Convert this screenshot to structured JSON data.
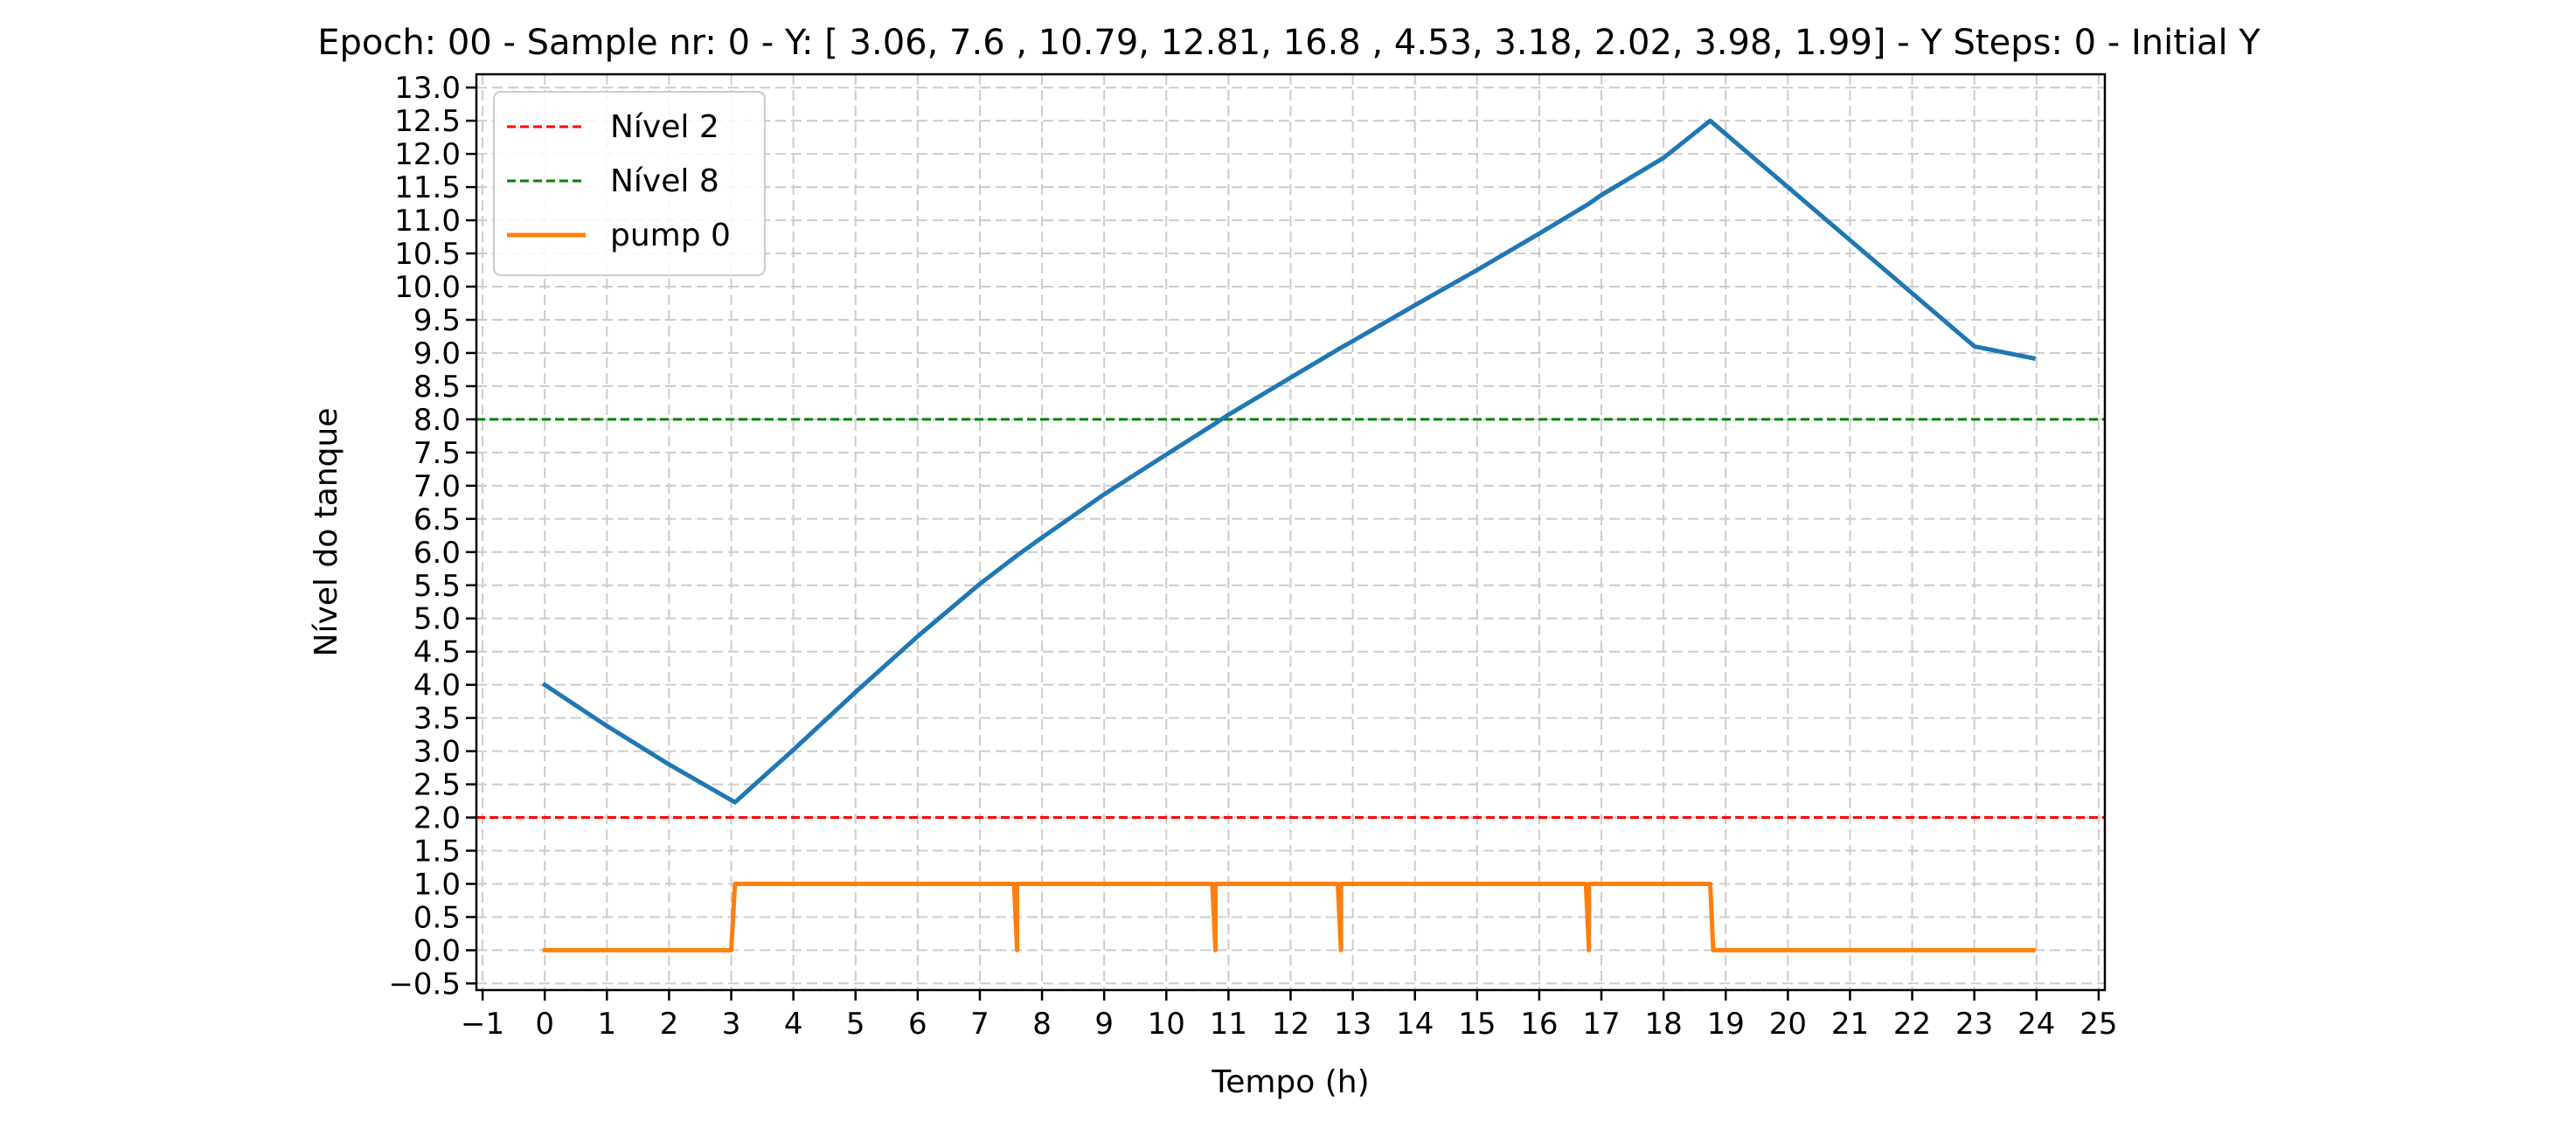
{
  "chart_data": {
    "type": "line",
    "title": "Epoch: 00 - Sample nr: 0 - Y: [ 3.06,  7.6 , 10.79, 12.81, 16.8 ,  4.53,  3.18,  2.02,  3.98,  1.99] - Y Steps: 0  - Initial Y",
    "xlabel": "Tempo (h)",
    "ylabel": "Nível do tanque",
    "xlim": [
      -1.1,
      25.1
    ],
    "ylim": [
      -0.6,
      13.2
    ],
    "xticks": [
      "−1",
      "0",
      "1",
      "2",
      "3",
      "4",
      "5",
      "6",
      "7",
      "8",
      "9",
      "10",
      "11",
      "12",
      "13",
      "14",
      "15",
      "16",
      "17",
      "18",
      "19",
      "20",
      "21",
      "22",
      "23",
      "24",
      "25"
    ],
    "yticks": [
      "−0.5",
      "0.0",
      "0.5",
      "1.0",
      "1.5",
      "2.0",
      "2.5",
      "3.0",
      "3.5",
      "4.0",
      "4.5",
      "5.0",
      "5.5",
      "6.0",
      "6.5",
      "7.0",
      "7.5",
      "8.0",
      "8.5",
      "9.0",
      "9.5",
      "10.0",
      "10.5",
      "11.0",
      "11.5",
      "12.0",
      "12.5",
      "13.0"
    ],
    "grid": true,
    "legend_position": "upper-left",
    "hlines": [
      {
        "name": "Nível 2",
        "y": 2,
        "color": "#ff0000",
        "style": "dashed"
      },
      {
        "name": "Nível 8",
        "y": 8,
        "color": "#008000",
        "style": "dashed"
      }
    ],
    "series": [
      {
        "color": "#1f77b4",
        "x": [
          0,
          1,
          2,
          3.06,
          4,
          5,
          6,
          7,
          7.6,
          8,
          9,
          10,
          10.79,
          11,
          12,
          12.81,
          13,
          14,
          15,
          16,
          16.8,
          17,
          18,
          18.75,
          19,
          20,
          21,
          22,
          23,
          23.95
        ],
        "y": [
          4.0,
          3.38,
          2.8,
          2.23,
          3.02,
          3.89,
          4.73,
          5.52,
          5.95,
          6.22,
          6.87,
          7.47,
          7.94,
          8.07,
          8.63,
          9.08,
          9.18,
          9.72,
          10.25,
          10.8,
          11.25,
          11.38,
          11.94,
          12.5,
          12.3,
          11.5,
          10.7,
          9.9,
          9.1,
          8.92
        ]
      },
      {
        "name": "pump 0",
        "color": "#ff7f0e",
        "x": [
          0,
          3.0,
          3.06,
          7.55,
          7.6,
          7.6,
          10.74,
          10.79,
          10.79,
          12.76,
          12.81,
          12.81,
          16.75,
          16.8,
          16.8,
          18.75,
          18.8,
          23.95
        ],
        "y": [
          0,
          0,
          1,
          1,
          0,
          1,
          1,
          0,
          1,
          1,
          0,
          1,
          1,
          0,
          1,
          1,
          0,
          0
        ]
      }
    ]
  }
}
